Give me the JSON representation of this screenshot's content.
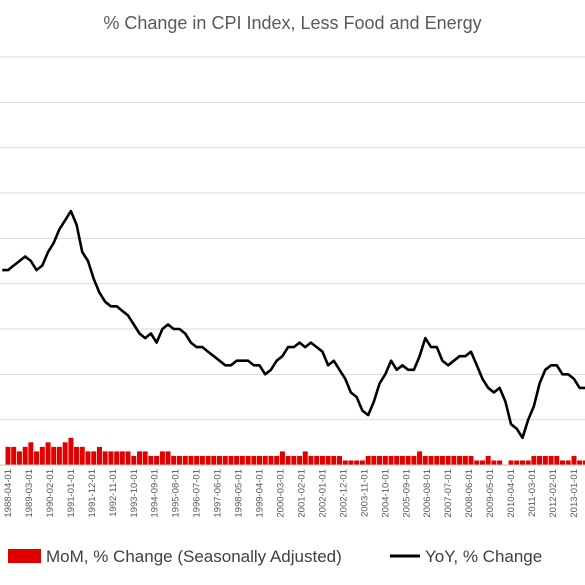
{
  "chart_data": {
    "type": "line",
    "title": "% Change in CPI Index, Less Food and Energy",
    "xlabel": "",
    "ylabel": "",
    "grid": true,
    "legend_placement": "bottom",
    "x_ticks": [
      "1988-04-01",
      "1989-03-01",
      "1990-02-01",
      "1991-01-01",
      "1991-12-01",
      "1992-11-01",
      "1993-10-01",
      "1994-09-01",
      "1995-08-01",
      "1996-07-01",
      "1997-06-01",
      "1998-05-01",
      "1999-04-01",
      "2000-03-01",
      "2001-02-01",
      "2002-01-01",
      "2002-12-01",
      "2003-11-01",
      "2004-10-01",
      "2005-09-01",
      "2006-08-01",
      "2007-07-01",
      "2008-06-01",
      "2009-05-01",
      "2010-04-01",
      "2011-03-01",
      "2012-02-01",
      "2013-01-01"
    ],
    "ylim": [
      0,
      9
    ],
    "series": [
      {
        "name": "MoM, % Change (Seasonally Adjusted)",
        "type": "bar",
        "color": "#e00000",
        "x": [
          "1988-04-01",
          "1988-07-01",
          "1988-10-01",
          "1989-01-01",
          "1989-04-01",
          "1989-07-01",
          "1989-10-01",
          "1990-01-01",
          "1990-04-01",
          "1990-07-01",
          "1990-10-01",
          "1991-01-01",
          "1991-04-01",
          "1991-07-01",
          "1991-10-01",
          "1992-01-01",
          "1992-04-01",
          "1992-07-01",
          "1992-10-01",
          "1993-01-01",
          "1993-04-01",
          "1993-07-01",
          "1993-10-01",
          "1994-01-01",
          "1994-04-01",
          "1994-07-01",
          "1994-10-01",
          "1995-01-01",
          "1995-04-01",
          "1995-07-01",
          "1995-10-01",
          "1996-01-01",
          "1996-04-01",
          "1996-07-01",
          "1996-10-01",
          "1997-01-01",
          "1997-04-01",
          "1997-07-01",
          "1997-10-01",
          "1998-01-01",
          "1998-04-01",
          "1998-07-01",
          "1998-10-01",
          "1999-01-01",
          "1999-04-01",
          "1999-07-01",
          "1999-10-01",
          "2000-01-01",
          "2000-04-01",
          "2000-07-01",
          "2000-10-01",
          "2001-01-01",
          "2001-04-01",
          "2001-07-01",
          "2001-10-01",
          "2002-01-01",
          "2002-04-01",
          "2002-07-01",
          "2002-10-01",
          "2003-01-01",
          "2003-04-01",
          "2003-07-01",
          "2003-10-01",
          "2004-01-01",
          "2004-04-01",
          "2004-07-01",
          "2004-10-01",
          "2005-01-01",
          "2005-04-01",
          "2005-07-01",
          "2005-10-01",
          "2006-01-01",
          "2006-04-01",
          "2006-07-01",
          "2006-10-01",
          "2007-01-01",
          "2007-04-01",
          "2007-07-01",
          "2007-10-01",
          "2008-01-01",
          "2008-04-01",
          "2008-07-01",
          "2008-10-01",
          "2009-01-01",
          "2009-04-01",
          "2009-07-01",
          "2009-10-01",
          "2010-01-01",
          "2010-04-01",
          "2010-07-01",
          "2010-10-01",
          "2011-01-01",
          "2011-04-01",
          "2011-07-01",
          "2011-10-01",
          "2012-01-01",
          "2012-04-01",
          "2012-07-01",
          "2012-10-01",
          "2013-01-01",
          "2013-04-01",
          "2013-07-01"
        ],
        "values": [
          0.4,
          0.4,
          0.3,
          0.4,
          0.5,
          0.3,
          0.4,
          0.5,
          0.4,
          0.4,
          0.5,
          0.6,
          0.4,
          0.4,
          0.3,
          0.3,
          0.4,
          0.3,
          0.3,
          0.3,
          0.3,
          0.3,
          0.2,
          0.3,
          0.3,
          0.2,
          0.2,
          0.3,
          0.3,
          0.2,
          0.2,
          0.2,
          0.2,
          0.2,
          0.2,
          0.2,
          0.2,
          0.2,
          0.2,
          0.2,
          0.2,
          0.2,
          0.2,
          0.2,
          0.2,
          0.2,
          0.2,
          0.2,
          0.3,
          0.2,
          0.2,
          0.2,
          0.3,
          0.2,
          0.2,
          0.2,
          0.2,
          0.2,
          0.2,
          0.1,
          0.1,
          0.1,
          0.1,
          0.2,
          0.2,
          0.2,
          0.2,
          0.2,
          0.2,
          0.2,
          0.2,
          0.2,
          0.3,
          0.2,
          0.2,
          0.2,
          0.2,
          0.2,
          0.2,
          0.2,
          0.2,
          0.2,
          0.1,
          0.1,
          0.2,
          0.1,
          0.1,
          0.0,
          0.1,
          0.1,
          0.1,
          0.1,
          0.2,
          0.2,
          0.2,
          0.2,
          0.2,
          0.1,
          0.1,
          0.2,
          0.1,
          0.1
        ]
      },
      {
        "name": "YoY, % Change",
        "type": "line",
        "color": "#000000",
        "x": [
          "1988-01-01",
          "1988-04-01",
          "1988-07-01",
          "1988-10-01",
          "1989-01-01",
          "1989-04-01",
          "1989-07-01",
          "1989-10-01",
          "1990-01-01",
          "1990-04-01",
          "1990-07-01",
          "1990-10-01",
          "1991-01-01",
          "1991-04-01",
          "1991-07-01",
          "1991-10-01",
          "1992-01-01",
          "1992-04-01",
          "1992-07-01",
          "1992-10-01",
          "1993-01-01",
          "1993-04-01",
          "1993-07-01",
          "1993-10-01",
          "1994-01-01",
          "1994-04-01",
          "1994-07-01",
          "1994-10-01",
          "1995-01-01",
          "1995-04-01",
          "1995-07-01",
          "1995-10-01",
          "1996-01-01",
          "1996-04-01",
          "1996-07-01",
          "1996-10-01",
          "1997-01-01",
          "1997-04-01",
          "1997-07-01",
          "1997-10-01",
          "1998-01-01",
          "1998-04-01",
          "1998-07-01",
          "1998-10-01",
          "1999-01-01",
          "1999-04-01",
          "1999-07-01",
          "1999-10-01",
          "2000-01-01",
          "2000-04-01",
          "2000-07-01",
          "2000-10-01",
          "2001-01-01",
          "2001-04-01",
          "2001-07-01",
          "2001-10-01",
          "2002-01-01",
          "2002-04-01",
          "2002-07-01",
          "2002-10-01",
          "2003-01-01",
          "2003-04-01",
          "2003-07-01",
          "2003-10-01",
          "2004-01-01",
          "2004-04-01",
          "2004-07-01",
          "2004-10-01",
          "2005-01-01",
          "2005-04-01",
          "2005-07-01",
          "2005-10-01",
          "2006-01-01",
          "2006-04-01",
          "2006-07-01",
          "2006-10-01",
          "2007-01-01",
          "2007-04-01",
          "2007-07-01",
          "2007-10-01",
          "2008-01-01",
          "2008-04-01",
          "2008-07-01",
          "2008-10-01",
          "2009-01-01",
          "2009-04-01",
          "2009-07-01",
          "2009-10-01",
          "2010-01-01",
          "2010-04-01",
          "2010-07-01",
          "2010-10-01",
          "2011-01-01",
          "2011-04-01",
          "2011-07-01",
          "2011-10-01",
          "2012-01-01",
          "2012-04-01",
          "2012-07-01",
          "2012-10-01",
          "2013-01-01",
          "2013-04-01",
          "2013-07-01"
        ],
        "values": [
          4.3,
          4.3,
          4.4,
          4.5,
          4.6,
          4.5,
          4.3,
          4.4,
          4.7,
          4.9,
          5.2,
          5.4,
          5.6,
          5.3,
          4.7,
          4.5,
          4.1,
          3.8,
          3.6,
          3.5,
          3.5,
          3.4,
          3.3,
          3.1,
          2.9,
          2.8,
          2.9,
          2.7,
          3.0,
          3.1,
          3.0,
          3.0,
          2.9,
          2.7,
          2.6,
          2.6,
          2.5,
          2.4,
          2.3,
          2.2,
          2.2,
          2.3,
          2.3,
          2.3,
          2.2,
          2.2,
          2.0,
          2.1,
          2.3,
          2.4,
          2.6,
          2.6,
          2.7,
          2.6,
          2.7,
          2.6,
          2.5,
          2.2,
          2.3,
          2.1,
          1.9,
          1.6,
          1.5,
          1.2,
          1.1,
          1.4,
          1.8,
          2.0,
          2.3,
          2.1,
          2.2,
          2.1,
          2.1,
          2.4,
          2.8,
          2.6,
          2.6,
          2.3,
          2.2,
          2.3,
          2.4,
          2.4,
          2.5,
          2.2,
          1.9,
          1.7,
          1.6,
          1.7,
          1.4,
          0.9,
          0.8,
          0.6,
          1.0,
          1.3,
          1.8,
          2.1,
          2.2,
          2.2,
          2.0,
          2.0,
          1.9,
          1.7,
          1.7
        ]
      }
    ]
  }
}
